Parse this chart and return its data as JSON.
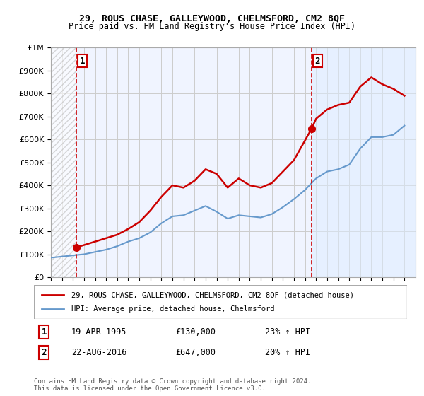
{
  "title": "29, ROUS CHASE, GALLEYWOOD, CHELMSFORD, CM2 8QF",
  "subtitle": "Price paid vs. HM Land Registry's House Price Index (HPI)",
  "legend_line1": "29, ROUS CHASE, GALLEYWOOD, CHELMSFORD, CM2 8QF (detached house)",
  "legend_line2": "HPI: Average price, detached house, Chelmsford",
  "annotation1_label": "1",
  "annotation1_date": "19-APR-1995",
  "annotation1_price": "£130,000",
  "annotation1_hpi": "23% ↑ HPI",
  "annotation1_year": 1995.3,
  "annotation2_label": "2",
  "annotation2_date": "22-AUG-2016",
  "annotation2_price": "£647,000",
  "annotation2_hpi": "20% ↑ HPI",
  "annotation2_year": 2016.6,
  "footnote": "Contains HM Land Registry data © Crown copyright and database right 2024.\nThis data is licensed under the Open Government Licence v3.0.",
  "red_line_color": "#cc0000",
  "blue_line_color": "#6699cc",
  "hatch_color": "#aaaaaa",
  "shade_color": "#ddeeff",
  "grid_color": "#cccccc",
  "background_color": "#f0f4ff",
  "ylim": [
    0,
    1000000
  ],
  "xlim_start": 1993,
  "xlim_end": 2026,
  "hatch_end": 1995.3,
  "shade_start": 2016.6,
  "property_years": [
    1995.3,
    1996,
    1997,
    1998,
    1999,
    2000,
    2001,
    2002,
    2003,
    2004,
    2005,
    2006,
    2007,
    2008,
    2009,
    2010,
    2011,
    2012,
    2013,
    2014,
    2015,
    2016.6,
    2017,
    2018,
    2019,
    2020,
    2021,
    2022,
    2023,
    2024,
    2025
  ],
  "property_values": [
    130000,
    140000,
    155000,
    170000,
    185000,
    210000,
    240000,
    290000,
    350000,
    400000,
    390000,
    420000,
    470000,
    450000,
    390000,
    430000,
    400000,
    390000,
    410000,
    460000,
    510000,
    647000,
    690000,
    730000,
    750000,
    760000,
    830000,
    870000,
    840000,
    820000,
    790000
  ],
  "hpi_years": [
    1993,
    1994,
    1995,
    1996,
    1997,
    1998,
    1999,
    2000,
    2001,
    2002,
    2003,
    2004,
    2005,
    2006,
    2007,
    2008,
    2009,
    2010,
    2011,
    2012,
    2013,
    2014,
    2015,
    2016,
    2017,
    2018,
    2019,
    2020,
    2021,
    2022,
    2023,
    2024,
    2025
  ],
  "hpi_values": [
    85000,
    90000,
    95000,
    100000,
    110000,
    120000,
    135000,
    155000,
    170000,
    195000,
    235000,
    265000,
    270000,
    290000,
    310000,
    285000,
    255000,
    270000,
    265000,
    260000,
    275000,
    305000,
    340000,
    380000,
    430000,
    460000,
    470000,
    490000,
    560000,
    610000,
    610000,
    620000,
    660000
  ]
}
